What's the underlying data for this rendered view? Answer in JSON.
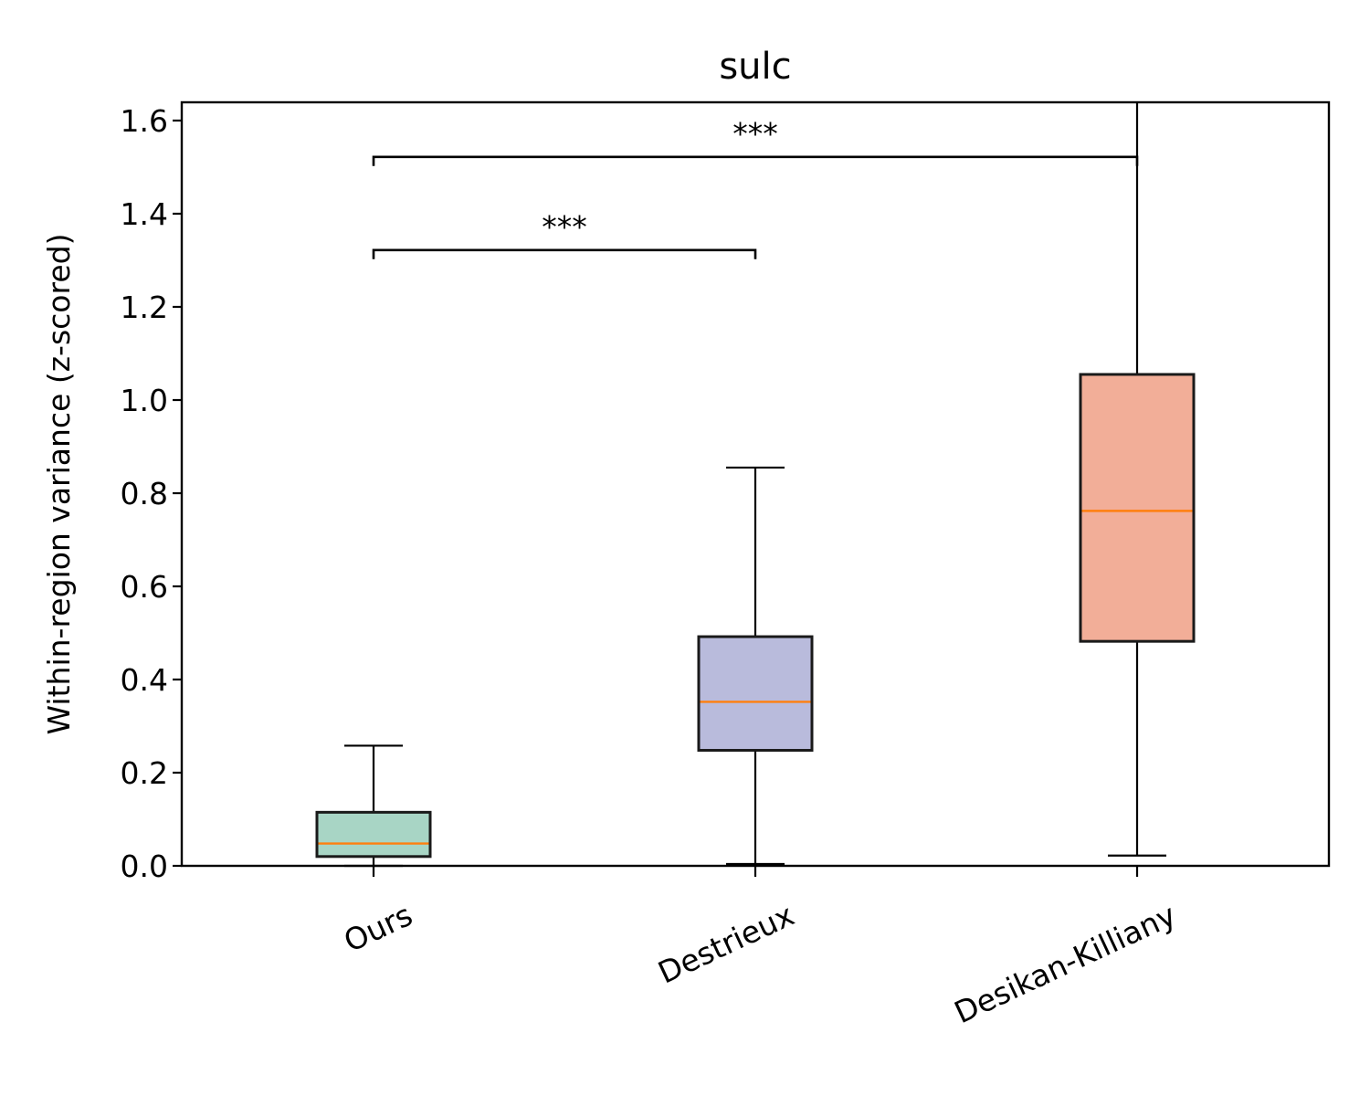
{
  "chart_data": {
    "type": "box",
    "title": "sulc",
    "xlabel": "",
    "ylabel": "Within-region variance (z-scored)",
    "ylim": [
      0,
      1.635
    ],
    "yticks": [
      0.0,
      0.2,
      0.4,
      0.6,
      0.8,
      1.0,
      1.2,
      1.4,
      1.6
    ],
    "ytick_labels": [
      "0.0",
      "0.2",
      "0.4",
      "0.6",
      "0.8",
      "1.0",
      "1.2",
      "1.4",
      "1.6"
    ],
    "categories": [
      "Ours",
      "Destrieux",
      "Desikan-Killiany"
    ],
    "boxes": [
      {
        "name": "Ours",
        "whisker_low": 0.0,
        "q1": 0.02,
        "median": 0.048,
        "q3": 0.115,
        "whisker_high": 0.258,
        "color": "#a8d5c5"
      },
      {
        "name": "Destrieux",
        "whisker_low": 0.004,
        "q1": 0.248,
        "median": 0.352,
        "q3": 0.492,
        "whisker_high": 0.855,
        "color": "#b9bbdc"
      },
      {
        "name": "Desikan-Killiany",
        "whisker_low": 0.022,
        "q1": 0.482,
        "median": 0.762,
        "q3": 1.055,
        "whisker_high": 1.65,
        "color": "#f2ae98"
      }
    ],
    "median_color": "#ff7f0e",
    "significance": [
      {
        "from": 0,
        "to": 1,
        "y": 1.322,
        "label": "***"
      },
      {
        "from": 0,
        "to": 2,
        "y": 1.522,
        "label": "***"
      }
    ],
    "legend": "none",
    "grid": false
  }
}
